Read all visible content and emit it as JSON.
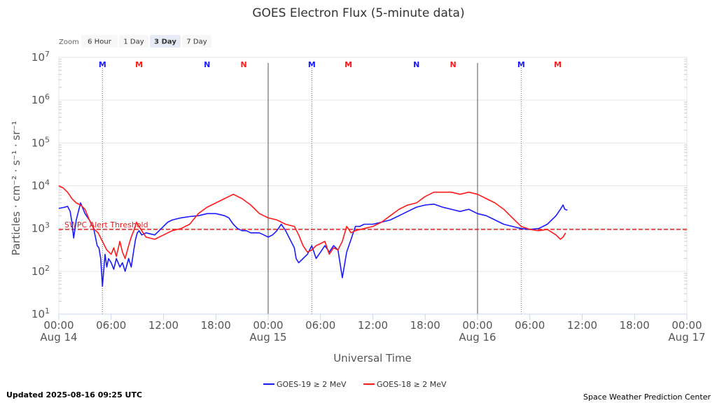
{
  "chart_data": {
    "type": "line",
    "title": "GOES Electron Flux (5-minute data)",
    "xlabel": "Universal Time",
    "ylabel": "Particles · cm⁻² · s⁻¹ · sr⁻¹",
    "x_unit": "hours since 2025-08-14 00:00 UTC",
    "xlim": [
      0,
      72
    ],
    "ylim": [
      1,
      7
    ],
    "y_scale": "log10",
    "y_ticks": [
      {
        "value": 1,
        "label": "10",
        "exp": "1"
      },
      {
        "value": 2,
        "label": "10",
        "exp": "2"
      },
      {
        "value": 3,
        "label": "10",
        "exp": "3"
      },
      {
        "value": 4,
        "label": "10",
        "exp": "4"
      },
      {
        "value": 5,
        "label": "10",
        "exp": "5"
      },
      {
        "value": 6,
        "label": "10",
        "exp": "6"
      },
      {
        "value": 7,
        "label": "10",
        "exp": "7"
      }
    ],
    "x_ticks": [
      {
        "value": 0,
        "label": "00:00",
        "sub": "Aug 14"
      },
      {
        "value": 6,
        "label": "06:00",
        "sub": ""
      },
      {
        "value": 12,
        "label": "12:00",
        "sub": ""
      },
      {
        "value": 18,
        "label": "18:00",
        "sub": ""
      },
      {
        "value": 24,
        "label": "00:00",
        "sub": "Aug 15"
      },
      {
        "value": 30,
        "label": "06:00",
        "sub": ""
      },
      {
        "value": 36,
        "label": "12:00",
        "sub": ""
      },
      {
        "value": 42,
        "label": "18:00",
        "sub": ""
      },
      {
        "value": 48,
        "label": "00:00",
        "sub": "Aug 16"
      },
      {
        "value": 54,
        "label": "06:00",
        "sub": ""
      },
      {
        "value": 60,
        "label": "12:00",
        "sub": ""
      },
      {
        "value": 66,
        "label": "18:00",
        "sub": ""
      },
      {
        "value": 72,
        "label": "00:00",
        "sub": "Aug 17"
      }
    ],
    "day_lines": [
      24,
      48
    ],
    "markers": [
      {
        "x": 5,
        "label": "M",
        "color": "#1a1aff",
        "line": true
      },
      {
        "x": 9.2,
        "label": "M",
        "color": "#ff1a1a",
        "line": false
      },
      {
        "x": 17,
        "label": "N",
        "color": "#1a1aff",
        "line": false
      },
      {
        "x": 21.2,
        "label": "N",
        "color": "#ff1a1a",
        "line": false
      },
      {
        "x": 29,
        "label": "M",
        "color": "#1a1aff",
        "line": true
      },
      {
        "x": 33.2,
        "label": "M",
        "color": "#ff1a1a",
        "line": false
      },
      {
        "x": 41,
        "label": "N",
        "color": "#1a1aff",
        "line": false
      },
      {
        "x": 45.2,
        "label": "N",
        "color": "#ff1a1a",
        "line": false
      },
      {
        "x": 53,
        "label": "M",
        "color": "#1a1aff",
        "line": true
      },
      {
        "x": 57.2,
        "label": "M",
        "color": "#ff1a1a",
        "line": false
      }
    ],
    "threshold": {
      "value": 2.98,
      "label": "SWPC Alert Threshold",
      "color": "#e62020"
    },
    "series": [
      {
        "name": "GOES-19 ≥ 2 MeV",
        "color": "#1a1aff",
        "x": [
          0,
          0.7,
          1,
          1.3,
          1.5,
          1.7,
          2,
          2.5,
          3,
          3.5,
          4,
          4.2,
          4.4,
          4.6,
          4.8,
          5.0,
          5.1,
          5.3,
          5.5,
          5.7,
          6,
          6.3,
          6.6,
          7,
          7.3,
          7.6,
          8,
          8.3,
          8.6,
          8.8,
          9,
          9.2,
          9.5,
          10,
          11,
          11.5,
          12,
          12.5,
          13,
          14,
          15,
          16,
          17,
          18,
          19,
          19.5,
          20,
          20.5,
          21,
          21.5,
          22,
          23,
          23.5,
          24,
          24.5,
          25,
          25.5,
          26,
          26.5,
          27,
          27.2,
          27.5,
          28,
          28.5,
          29,
          29.5,
          30,
          30.5,
          31,
          31.5,
          32,
          32.5,
          33,
          33.5,
          34,
          34.5,
          35,
          36,
          37,
          38,
          39,
          40,
          41,
          42,
          43,
          44,
          45,
          46,
          47,
          48,
          49,
          50,
          51,
          52,
          53,
          54,
          55,
          56,
          57,
          57.5,
          57.8,
          58,
          58.3
        ],
        "y": [
          3.47,
          3.5,
          3.52,
          3.4,
          3.15,
          2.78,
          3.2,
          3.6,
          3.35,
          3.2,
          3.0,
          2.8,
          2.6,
          2.55,
          2.3,
          1.65,
          1.9,
          2.4,
          2.1,
          2.3,
          2.2,
          2.05,
          2.3,
          2.1,
          2.2,
          2.0,
          2.3,
          2.1,
          2.5,
          2.75,
          2.9,
          2.95,
          2.85,
          2.9,
          2.85,
          2.95,
          3.05,
          3.15,
          3.2,
          3.25,
          3.28,
          3.3,
          3.35,
          3.35,
          3.3,
          3.25,
          3.1,
          3.0,
          2.95,
          2.95,
          2.9,
          2.9,
          2.85,
          2.8,
          2.85,
          2.95,
          3.1,
          2.95,
          2.75,
          2.55,
          2.3,
          2.2,
          2.3,
          2.4,
          2.6,
          2.3,
          2.45,
          2.6,
          2.45,
          2.6,
          2.5,
          1.85,
          2.45,
          2.75,
          3.05,
          3.05,
          3.1,
          3.1,
          3.15,
          3.2,
          3.3,
          3.4,
          3.5,
          3.55,
          3.57,
          3.5,
          3.45,
          3.4,
          3.45,
          3.35,
          3.3,
          3.2,
          3.1,
          3.05,
          3.0,
          2.98,
          3.0,
          3.1,
          3.3,
          3.45,
          3.55,
          3.45,
          3.43
        ]
      },
      {
        "name": "GOES-18 ≥ 2 MeV",
        "color": "#ff1a1a",
        "x": [
          0,
          0.5,
          1,
          1.5,
          2,
          2.5,
          3,
          3.5,
          4,
          4.5,
          5,
          5.5,
          6,
          6.3,
          6.6,
          7,
          7.3,
          7.6,
          8,
          8.3,
          8.6,
          8.9,
          9.2,
          9.5,
          10,
          11,
          12,
          13,
          14,
          15,
          16,
          17,
          18,
          19,
          20,
          21,
          22,
          23,
          24,
          25,
          26,
          27,
          27.5,
          28,
          28.5,
          29,
          29.5,
          30,
          30.5,
          31,
          31.5,
          32,
          32.5,
          33,
          33.5,
          34,
          35,
          36,
          37,
          38,
          39,
          40,
          41,
          42,
          43,
          44,
          45,
          46,
          47,
          48,
          49,
          50,
          51,
          52,
          53,
          54,
          55,
          56,
          57,
          57.5,
          57.8,
          58.1
        ],
        "y": [
          4.0,
          3.95,
          3.85,
          3.7,
          3.6,
          3.55,
          3.45,
          3.2,
          3.0,
          2.9,
          2.7,
          2.5,
          2.4,
          2.55,
          2.35,
          2.7,
          2.45,
          2.3,
          2.6,
          2.8,
          2.95,
          3.15,
          3.05,
          2.95,
          2.8,
          2.75,
          2.85,
          2.95,
          3.0,
          3.1,
          3.35,
          3.5,
          3.6,
          3.7,
          3.8,
          3.7,
          3.55,
          3.35,
          3.25,
          3.2,
          3.1,
          3.05,
          2.85,
          2.6,
          2.45,
          2.5,
          2.6,
          2.65,
          2.7,
          2.4,
          2.55,
          2.5,
          2.7,
          3.05,
          2.9,
          2.95,
          3.0,
          3.05,
          3.15,
          3.3,
          3.45,
          3.55,
          3.6,
          3.75,
          3.85,
          3.85,
          3.85,
          3.8,
          3.85,
          3.8,
          3.7,
          3.6,
          3.45,
          3.25,
          3.05,
          2.98,
          2.95,
          2.98,
          2.85,
          2.75,
          2.8,
          2.9
        ]
      }
    ]
  },
  "zoom": {
    "label": "Zoom",
    "buttons": [
      {
        "label": "6 Hour",
        "active": false
      },
      {
        "label": "1 Day",
        "active": false
      },
      {
        "label": "3 Day",
        "active": true
      },
      {
        "label": "7 Day",
        "active": false
      }
    ]
  },
  "footer": {
    "updated": "Updated 2025-08-16 09:25 UTC",
    "credit": "Space Weather Prediction Center"
  }
}
